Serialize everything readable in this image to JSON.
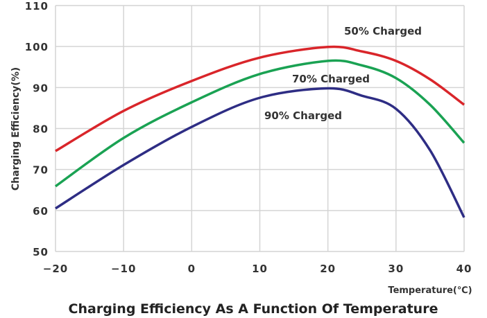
{
  "chart_data": {
    "type": "line",
    "title": "Charging Efficiency As A Function Of Temperature",
    "xlabel": "Temperature(℃)",
    "ylabel": "Charging  Efficiency(%)",
    "xlim": [
      -20,
      40
    ],
    "ylim": [
      50,
      110
    ],
    "xticks": [
      -20,
      -10,
      0,
      10,
      20,
      30,
      40
    ],
    "xtick_labels": [
      "−20",
      "−10",
      "0",
      "10",
      "20",
      "30",
      "40"
    ],
    "yticks": [
      50,
      60,
      70,
      80,
      90,
      100,
      110
    ],
    "grid": true,
    "x": [
      -20,
      -10,
      0,
      10,
      20,
      25,
      30,
      35,
      40
    ],
    "series": [
      {
        "name": "50% Charged",
        "color": "#d9252a",
        "values": [
          74.5,
          84.3,
          91.6,
          97.3,
          99.9,
          98.8,
          96.5,
          92.0,
          85.8
        ]
      },
      {
        "name": "70% Charged",
        "color": "#1aa253",
        "values": [
          65.9,
          77.7,
          86.4,
          93.3,
          96.5,
          95.4,
          92.3,
          85.8,
          76.5
        ]
      },
      {
        "name": "90% Charged",
        "color": "#2e2d84",
        "values": [
          60.5,
          71.1,
          80.4,
          87.5,
          89.8,
          88.0,
          84.8,
          74.7,
          58.3
        ]
      }
    ]
  }
}
